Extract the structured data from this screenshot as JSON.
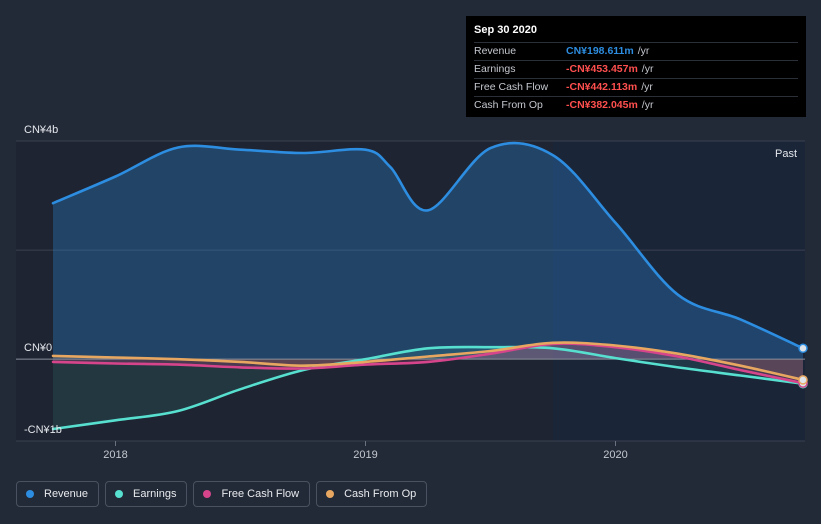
{
  "chart_data": {
    "type": "area",
    "y_unit_labels": [
      "CN¥4b",
      "CN¥0",
      "-CN¥1b"
    ],
    "ylim": [
      -1.5,
      4.0
    ],
    "x_ticks": [
      "2018",
      "2019",
      "2020"
    ],
    "x_tick_values": [
      2018.0,
      2019.0,
      2020.0
    ],
    "xlim": [
      2017.73,
      2020.75
    ],
    "forecast_region_start": 2019.75,
    "past_label": "Past",
    "series": [
      {
        "name": "Revenue",
        "color": "#2d8de0",
        "x": [
          2017.75,
          2018.0,
          2018.25,
          2018.5,
          2018.75,
          2019.0,
          2019.1,
          2019.25,
          2019.5,
          2019.75,
          2020.0,
          2020.25,
          2020.5,
          2020.75
        ],
        "values": [
          2.86,
          3.35,
          3.88,
          3.84,
          3.78,
          3.84,
          3.52,
          2.73,
          3.87,
          3.74,
          2.5,
          1.18,
          0.73,
          0.2
        ]
      },
      {
        "name": "Earnings",
        "color": "#57e0cf",
        "x": [
          2017.75,
          2018.0,
          2018.25,
          2018.5,
          2018.75,
          2019.0,
          2019.25,
          2019.5,
          2019.75,
          2020.0,
          2020.25,
          2020.5,
          2020.75
        ],
        "values": [
          -1.28,
          -1.12,
          -0.95,
          -0.55,
          -0.2,
          0.0,
          0.2,
          0.22,
          0.2,
          0.02,
          -0.15,
          -0.3,
          -0.45
        ]
      },
      {
        "name": "Free Cash Flow",
        "color": "#d6458b",
        "x": [
          2017.75,
          2018.0,
          2018.25,
          2018.5,
          2018.75,
          2019.0,
          2019.25,
          2019.5,
          2019.75,
          2020.0,
          2020.25,
          2020.5,
          2020.75
        ],
        "values": [
          -0.05,
          -0.08,
          -0.1,
          -0.15,
          -0.17,
          -0.1,
          -0.05,
          0.1,
          0.28,
          0.22,
          0.05,
          -0.2,
          -0.44
        ]
      },
      {
        "name": "Cash From Op",
        "color": "#e8a761",
        "x": [
          2017.75,
          2018.0,
          2018.25,
          2018.5,
          2018.75,
          2019.0,
          2019.25,
          2019.5,
          2019.75,
          2020.0,
          2020.25,
          2020.5,
          2020.75
        ],
        "values": [
          0.06,
          0.03,
          0.0,
          -0.05,
          -0.12,
          -0.05,
          0.05,
          0.15,
          0.3,
          0.25,
          0.1,
          -0.12,
          -0.38
        ]
      }
    ]
  },
  "tooltip": {
    "date": "Sep 30 2020",
    "rows": [
      {
        "label": "Revenue",
        "value": "CN¥198.611m",
        "unit": "/yr",
        "color": "#2d8de0"
      },
      {
        "label": "Earnings",
        "value": "-CN¥453.457m",
        "unit": "/yr",
        "color": "#ff4f4f"
      },
      {
        "label": "Free Cash Flow",
        "value": "-CN¥442.113m",
        "unit": "/yr",
        "color": "#ff4f4f"
      },
      {
        "label": "Cash From Op",
        "value": "-CN¥382.045m",
        "unit": "/yr",
        "color": "#ff4f4f"
      }
    ]
  },
  "legend": [
    {
      "label": "Revenue",
      "color": "#2d8de0"
    },
    {
      "label": "Earnings",
      "color": "#57e0cf"
    },
    {
      "label": "Free Cash Flow",
      "color": "#d6458b"
    },
    {
      "label": "Cash From Op",
      "color": "#e8a761"
    }
  ]
}
